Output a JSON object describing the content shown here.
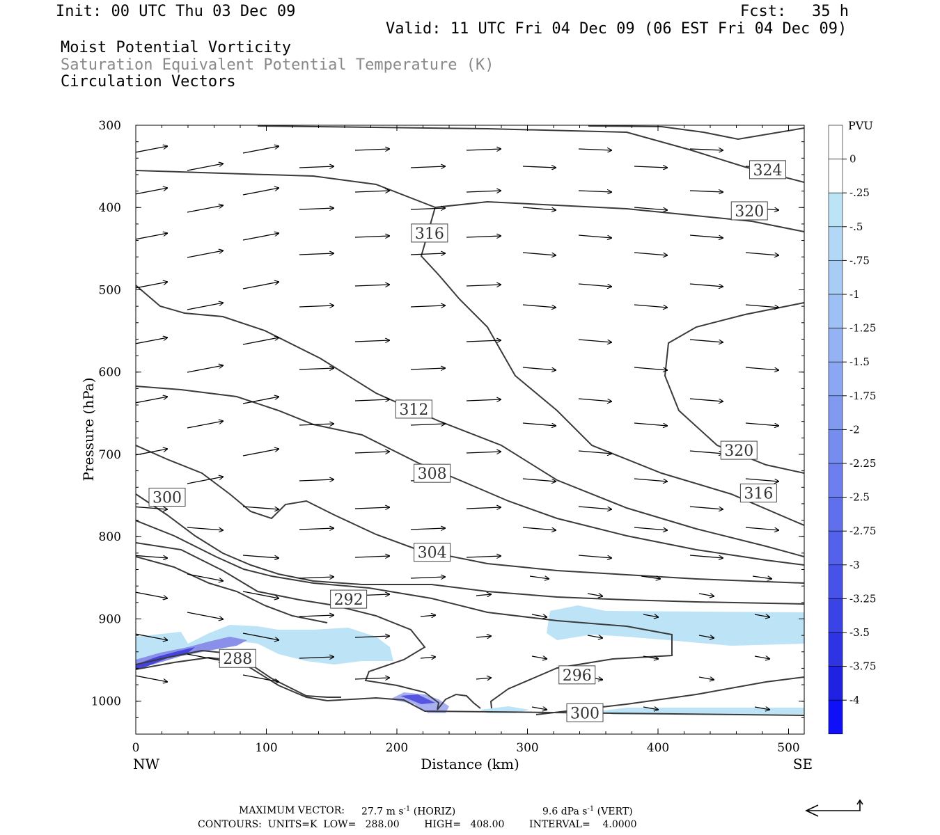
{
  "header": {
    "init": "Init: 00 UTC Thu 03 Dec 09",
    "fcst_label": "Fcst:",
    "fcst_value": "35 h",
    "valid": "Valid: 11 UTC Fri 04 Dec 09 (06 EST Fri 04 Dec 09)"
  },
  "fields": {
    "field1": "Moist Potential Vorticity",
    "field2": "Saturation Equivalent Potential Temperature (K)",
    "field3": "Circulation Vectors"
  },
  "footer": {
    "max_vector_label": "MAXIMUM VECTOR:",
    "horiz_value": "27.7 m s",
    "horiz_exp": "-1",
    "horiz_tag": "(HORIZ)",
    "vert_value": "9.6 dPa s",
    "vert_exp": "-1",
    "vert_tag": "(VERT)",
    "contours": "CONTOURS:  UNITS=K  LOW=   288.00        HIGH=   408.00        INTERVAL=    4.0000"
  },
  "colors": {
    "contour": "#3a3a3a",
    "pv_light": "#bde3f7",
    "pv_strong": "#3333dd"
  },
  "chart_data": {
    "type": "contour",
    "xlabel": "Distance (km)",
    "ylabel": "Pressure (hPa)",
    "xlim": [
      0,
      512
    ],
    "ylim": [
      1040,
      300
    ],
    "x_ticks": [
      0,
      100,
      200,
      300,
      400,
      500
    ],
    "y_ticks": [
      300,
      400,
      500,
      600,
      700,
      800,
      900,
      1000
    ],
    "x_end_labels": {
      "left": "NW",
      "right": "SE"
    },
    "contour_labels": [
      {
        "text": "324",
        "x": 484,
        "p": 354
      },
      {
        "text": "320",
        "x": 470,
        "p": 404
      },
      {
        "text": "316",
        "x": 225,
        "p": 431
      },
      {
        "text": "312",
        "x": 213,
        "p": 645
      },
      {
        "text": "320",
        "x": 462,
        "p": 695
      },
      {
        "text": "308",
        "x": 227,
        "p": 723
      },
      {
        "text": "316",
        "x": 477,
        "p": 747
      },
      {
        "text": "300",
        "x": 24,
        "p": 752
      },
      {
        "text": "304",
        "x": 227,
        "p": 819
      },
      {
        "text": "292",
        "x": 163,
        "p": 876
      },
      {
        "text": "288",
        "x": 78,
        "p": 948
      },
      {
        "text": "296",
        "x": 338,
        "p": 968
      },
      {
        "text": "300",
        "x": 344,
        "p": 1014
      }
    ],
    "colorbar": {
      "title": "PVU",
      "labels": [
        "0",
        "-.25",
        "-.5",
        "-.75",
        "-1",
        "-1.25",
        "-1.5",
        "-1.75",
        "-2",
        "-2.25",
        "-2.5",
        "-2.75",
        "-3",
        "-3.25",
        "-3.5",
        "-3.75",
        "-4"
      ]
    }
  }
}
